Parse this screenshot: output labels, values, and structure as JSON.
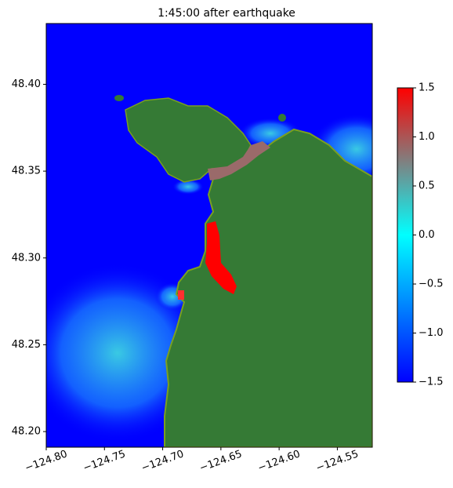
{
  "chart_data": {
    "type": "heatmap-map",
    "title": "1:45:00 after earthquake",
    "xlim": [
      -124.8,
      -124.52
    ],
    "xticks": [
      {
        "value": -124.8,
        "label": "−124.80"
      },
      {
        "value": -124.75,
        "label": "−124.75"
      },
      {
        "value": -124.7,
        "label": "−124.70"
      },
      {
        "value": -124.65,
        "label": "−124.65"
      },
      {
        "value": -124.6,
        "label": "−124.60"
      },
      {
        "value": -124.55,
        "label": "−124.55"
      }
    ],
    "ylim": [
      48.191,
      48.435
    ],
    "yticks": [
      {
        "value": 48.4,
        "label": "48.40"
      },
      48.35,
      {
        "value": 48.3,
        "label": "48.30"
      },
      48.25,
      {
        "value": 48.2,
        "label": "48.20"
      }
    ],
    "colorbar": {
      "lim": [
        -1.5,
        1.5
      ],
      "ticks": [
        {
          "value": -1.5,
          "label": "−1.5"
        },
        {
          "value": -1.0,
          "label": "−1.0"
        },
        {
          "value": -0.5,
          "label": "−0.5"
        },
        {
          "value": 0,
          "label": "0.0"
        },
        0.5,
        {
          "value": 1.0,
          "label": "1.0"
        },
        1.5
      ]
    }
  }
}
